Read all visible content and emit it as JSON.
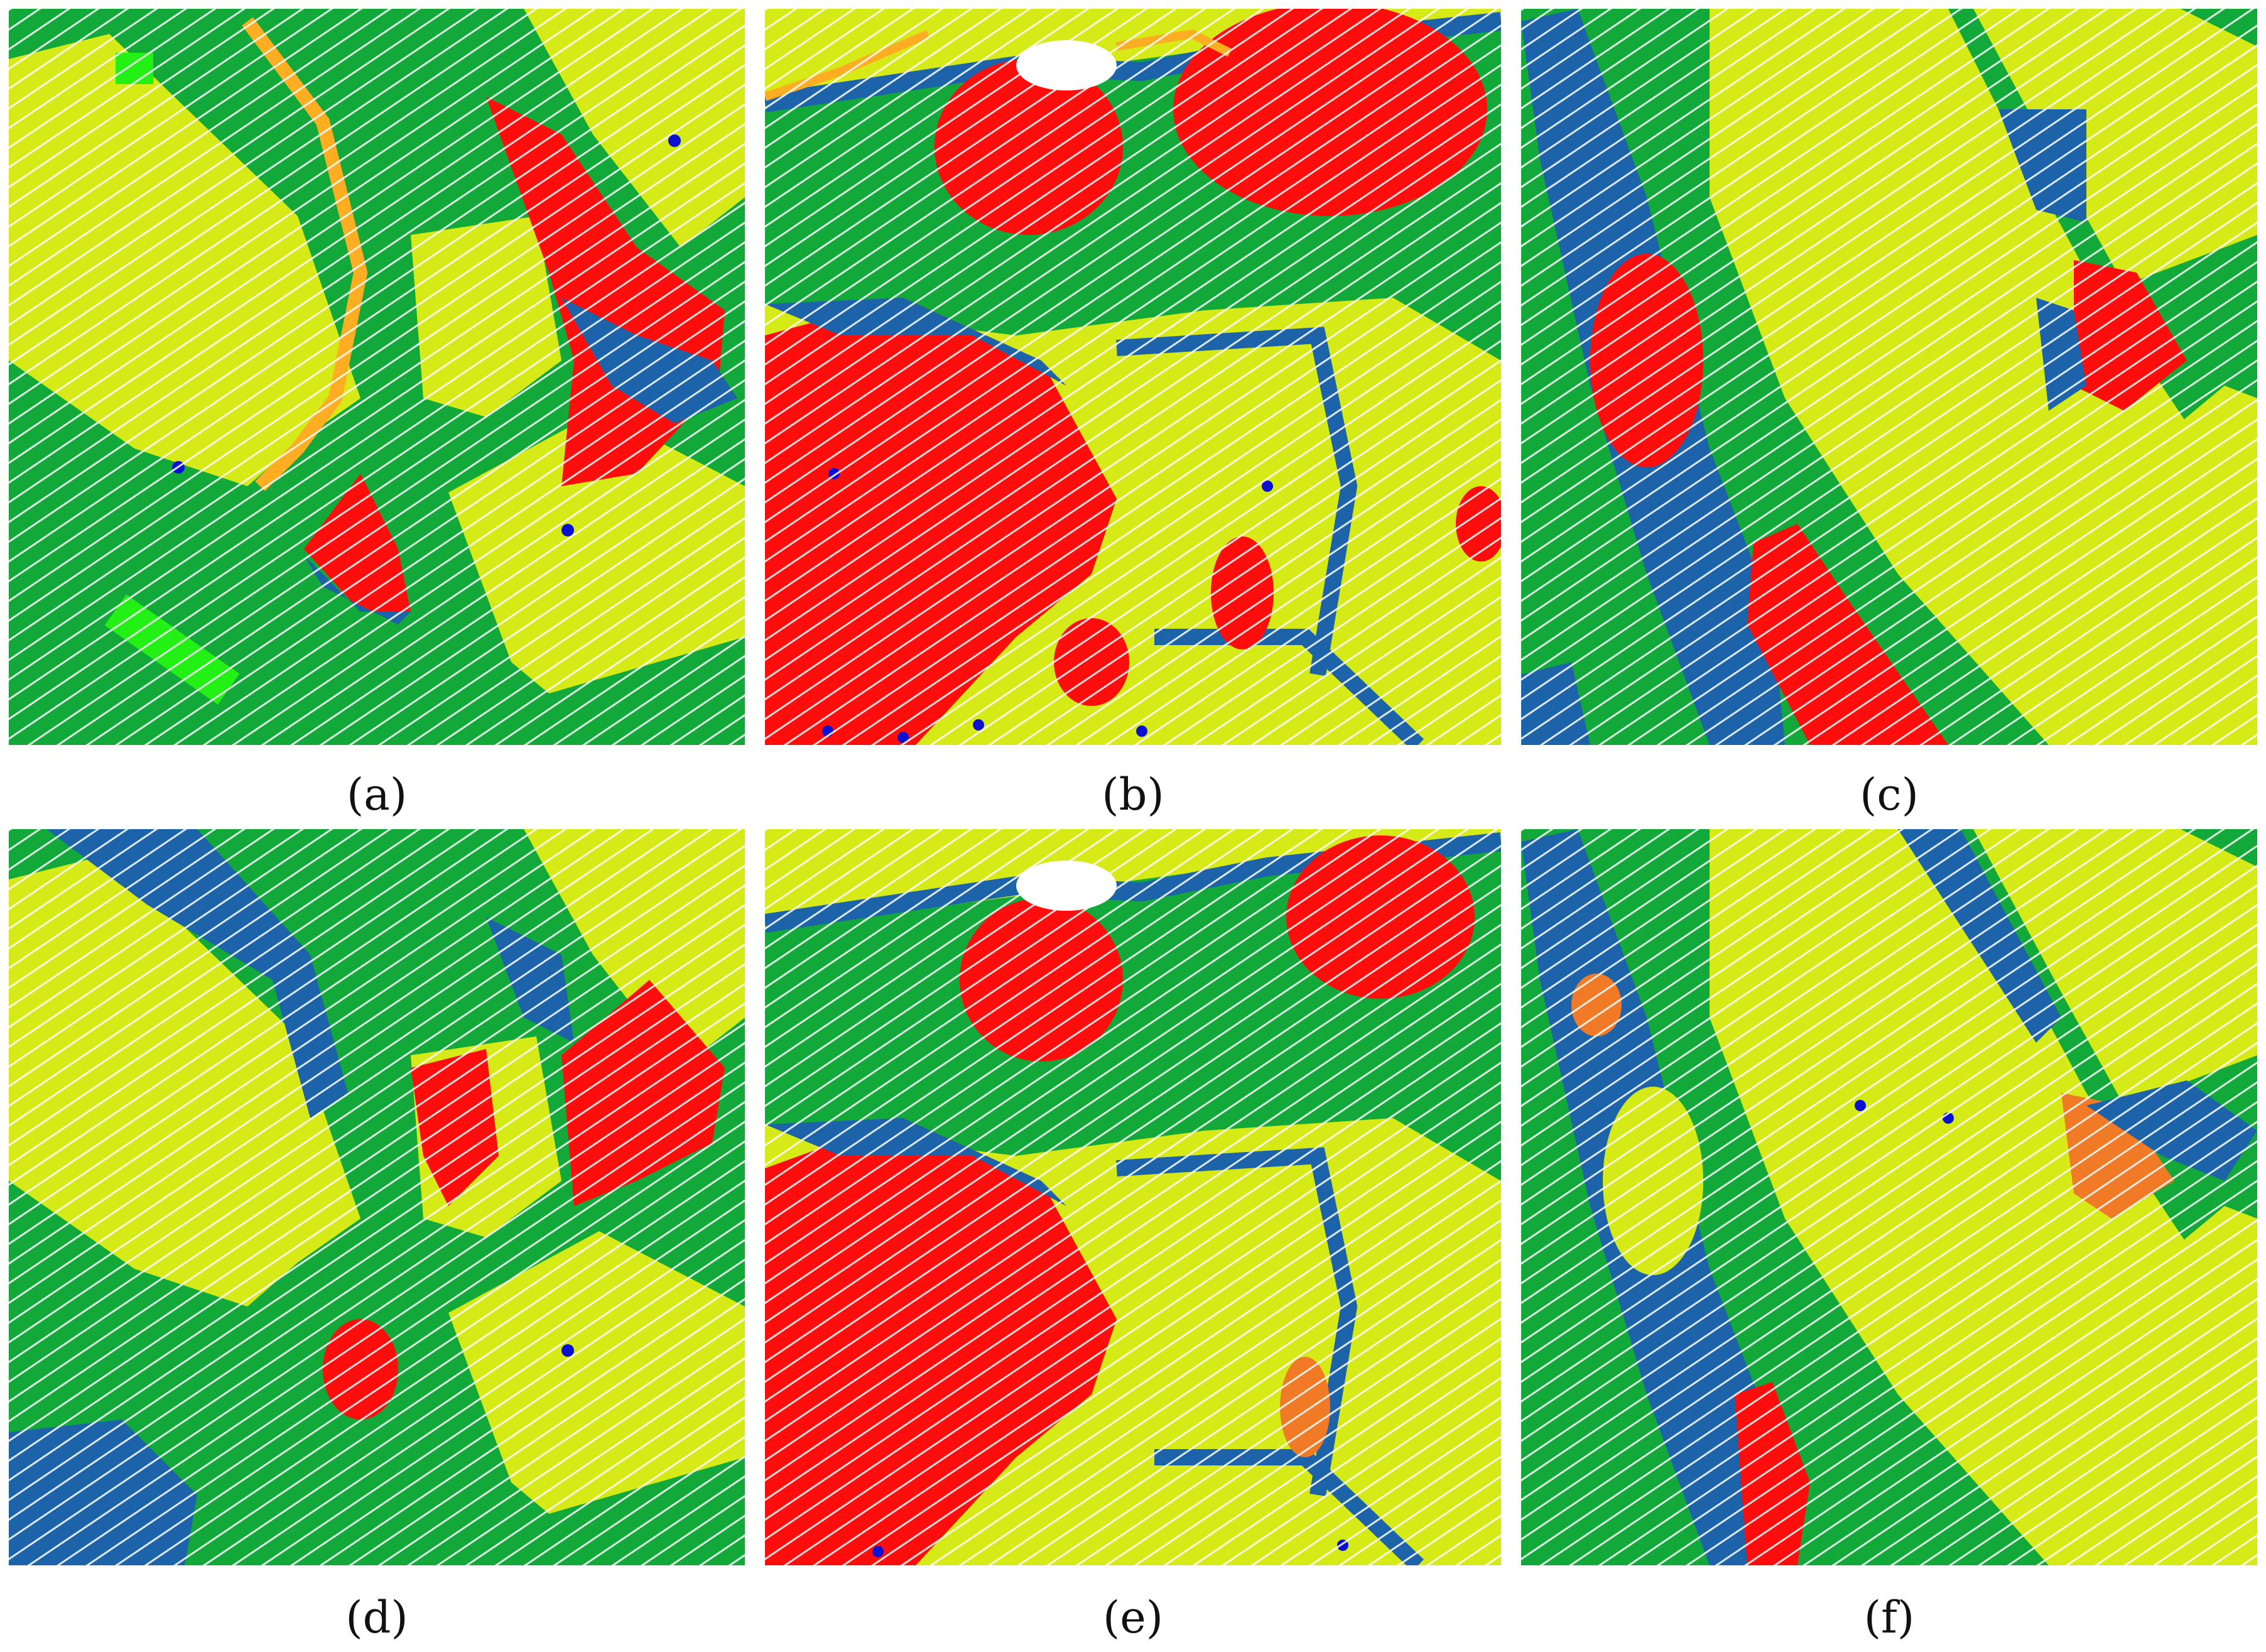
{
  "colors": {
    "ground": "#12a83a",
    "roof": "#d6ea18",
    "tree": "#ff0d0d",
    "shrub": "#1d63aa",
    "orange": "#ffad22",
    "orange_dark": "#f07a25",
    "bright_green": "#23f014",
    "blue_dot": "#0a10d2",
    "scan_line": "#ffffff"
  },
  "panels": [
    {
      "id": "a",
      "caption": "(a)"
    },
    {
      "id": "b",
      "caption": "(b)"
    },
    {
      "id": "c",
      "caption": "(c)"
    },
    {
      "id": "d",
      "caption": "(d)"
    },
    {
      "id": "e",
      "caption": "(e)"
    },
    {
      "id": "f",
      "caption": "(f)"
    }
  ]
}
